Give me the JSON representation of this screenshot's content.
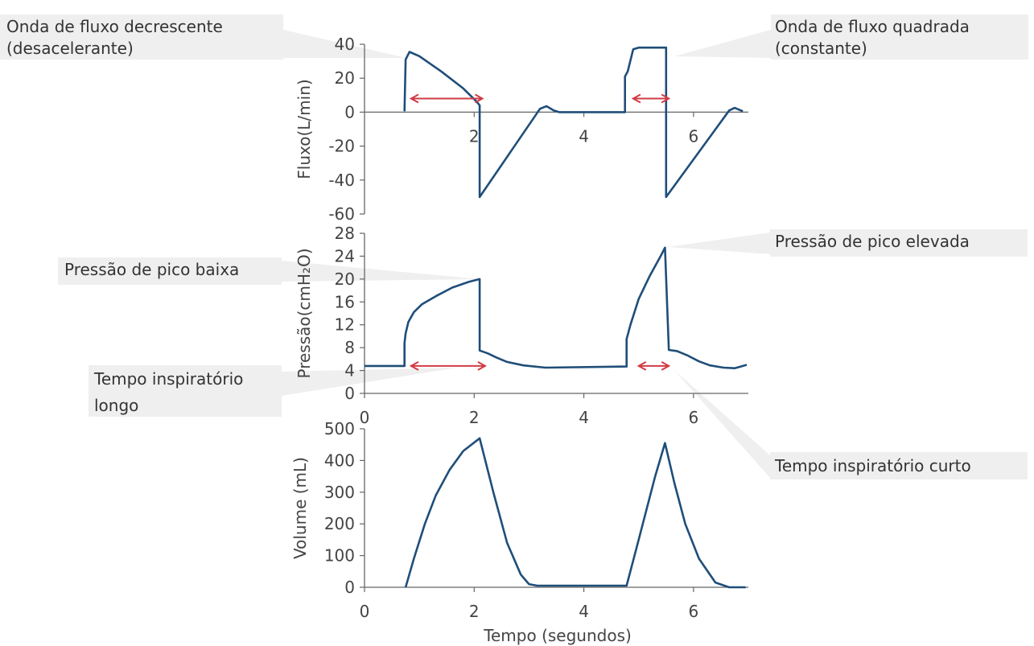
{
  "colors": {
    "curve": "#1f4e79",
    "arrow": "#d23b45",
    "axis": "#666666",
    "text": "#444444",
    "callout_box": "#efefef"
  },
  "xlabel": "Tempo (segundos)",
  "chart_data": [
    {
      "id": "fluxo",
      "type": "line",
      "ylabel": "Fluxo(L/min)",
      "ylim": [
        -60,
        40
      ],
      "yticks": [
        "40",
        "20",
        "0",
        "-20",
        "-40",
        "-60"
      ],
      "xlim": [
        0,
        7
      ],
      "xticks": [
        "2",
        "4",
        "6"
      ],
      "xtick_values": [
        2,
        4,
        6
      ],
      "series": [
        {
          "x": [
            0.73,
            0.75,
            0.82,
            1.0,
            1.4,
            1.8,
            2.05,
            2.1,
            2.1,
            3.2,
            3.32,
            3.45,
            3.55,
            4.75,
            4.75,
            4.8,
            4.9,
            5.0,
            5.45,
            5.5,
            5.5,
            6.65,
            6.75,
            6.9
          ],
          "y": [
            0.5,
            31,
            35.5,
            33,
            24,
            14,
            6,
            4,
            -50,
            2,
            3.5,
            1,
            0,
            0,
            21,
            24,
            37,
            38,
            38,
            38,
            -50,
            1,
            2.5,
            0.5
          ]
        }
      ],
      "annotation": {
        "type": "arrows",
        "spans": [
          [
            0.85,
            2.15
          ],
          [
            4.9,
            5.55
          ]
        ],
        "y": 8
      }
    },
    {
      "id": "pressao",
      "type": "line",
      "ylabel": "Pressão(cmH₂O)",
      "ylim": [
        0,
        28
      ],
      "yticks": [
        "28",
        "24",
        "20",
        "16",
        "12",
        "8",
        "4",
        "0"
      ],
      "xlim": [
        0,
        7
      ],
      "xticks": [
        "0",
        "2",
        "4",
        "6"
      ],
      "xtick_values": [
        0,
        2,
        4,
        6
      ],
      "series": [
        {
          "x": [
            0.0,
            0.73,
            0.73,
            0.75,
            0.8,
            0.9,
            1.05,
            1.3,
            1.6,
            1.9,
            2.1,
            2.1,
            2.25,
            2.4,
            2.6,
            2.9,
            3.3,
            4.78,
            4.78,
            4.85,
            5.0,
            5.2,
            5.4,
            5.48,
            5.55,
            5.7,
            5.9,
            6.1,
            6.3,
            6.55,
            6.75,
            6.97
          ],
          "y": [
            4.8,
            4.8,
            8.8,
            10.5,
            12.5,
            14.2,
            15.6,
            17,
            18.5,
            19.5,
            20,
            7.5,
            7,
            6.3,
            5.5,
            4.9,
            4.5,
            4.7,
            9.5,
            12,
            16.5,
            20.5,
            24,
            25.5,
            7.6,
            7.4,
            6.6,
            5.6,
            4.9,
            4.5,
            4.4,
            5
          ]
        }
      ],
      "annotation": {
        "type": "arrows",
        "spans": [
          [
            0.85,
            2.2
          ],
          [
            5.0,
            5.55
          ]
        ],
        "y": 4.8
      }
    },
    {
      "id": "volume",
      "type": "line",
      "ylabel": "Volume (mL)",
      "ylim": [
        0,
        500
      ],
      "yticks": [
        "500",
        "400",
        "300",
        "200",
        "100",
        "0"
      ],
      "xlim": [
        0,
        7
      ],
      "xticks": [
        "0",
        "2",
        "4",
        "6"
      ],
      "xtick_values": [
        0,
        2,
        4,
        6
      ],
      "series": [
        {
          "x": [
            0.75,
            0.9,
            1.1,
            1.3,
            1.55,
            1.8,
            2.1,
            2.35,
            2.6,
            2.85,
            3.0,
            3.15,
            4.78,
            5.0,
            5.3,
            5.48,
            5.65,
            5.85,
            6.1,
            6.4,
            6.65,
            6.95
          ],
          "y": [
            0,
            90,
            200,
            290,
            370,
            430,
            470,
            300,
            140,
            40,
            10,
            5,
            5,
            150,
            350,
            455,
            330,
            200,
            90,
            15,
            0,
            0
          ]
        }
      ]
    }
  ],
  "callouts": [
    {
      "id": "decrescente",
      "lines": [
        "Onda de fluxo decrescente",
        "(desacelerante)"
      ]
    },
    {
      "id": "quadrada",
      "lines": [
        "Onda de fluxo quadrada",
        "(constante)"
      ]
    },
    {
      "id": "pico-elevada",
      "lines": [
        "Pressão de pico elevada"
      ]
    },
    {
      "id": "pico-baixa",
      "lines": [
        "Pressão de pico baixa"
      ]
    },
    {
      "id": "tempo-longo",
      "lines": [
        "Tempo inspiratório",
        "longo"
      ]
    },
    {
      "id": "tempo-curto",
      "lines": [
        "Tempo inspiratório curto"
      ]
    }
  ]
}
